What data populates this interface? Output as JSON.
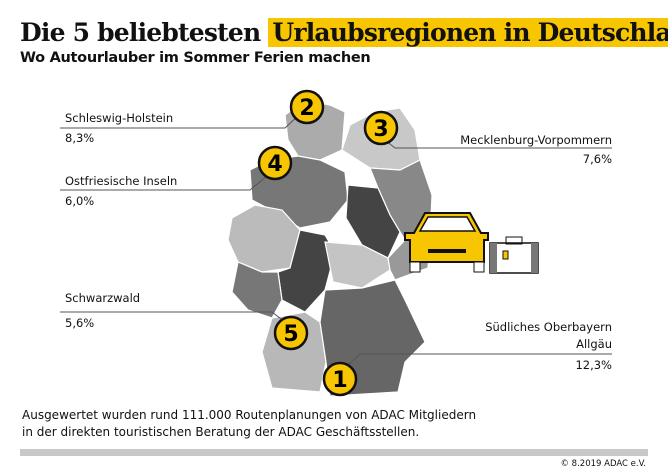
{
  "title": {
    "part1": "Die 5 beliebtesten",
    "highlight": "Urlaubsregionen in Deutschland"
  },
  "subtitle": "Wo Autourlauber im Sommer Ferien machen",
  "regions": [
    {
      "rank": "1",
      "name": "Südliches Oberbayern",
      "name2": "Allgäu",
      "value": "12,3%"
    },
    {
      "rank": "2",
      "name": "Schleswig-Holstein",
      "value": "8,3%"
    },
    {
      "rank": "3",
      "name": "Mecklenburg-Vorpommern",
      "value": "7,6%"
    },
    {
      "rank": "4",
      "name": "Ostfriesische Inseln",
      "value": "6,0%"
    },
    {
      "rank": "5",
      "name": "Schwarzwald",
      "value": "5,6%"
    }
  ],
  "footnote": {
    "line1": "Ausgewertet wurden rund 111.000 Routenplanungen von ADAC Mitgliedern",
    "line2": "in der direkten touristischen Beratung der ADAC Geschäftsstellen."
  },
  "copyright": "© 8.2019 ADAC e.V.",
  "colors": {
    "accent": "#f7c600"
  }
}
